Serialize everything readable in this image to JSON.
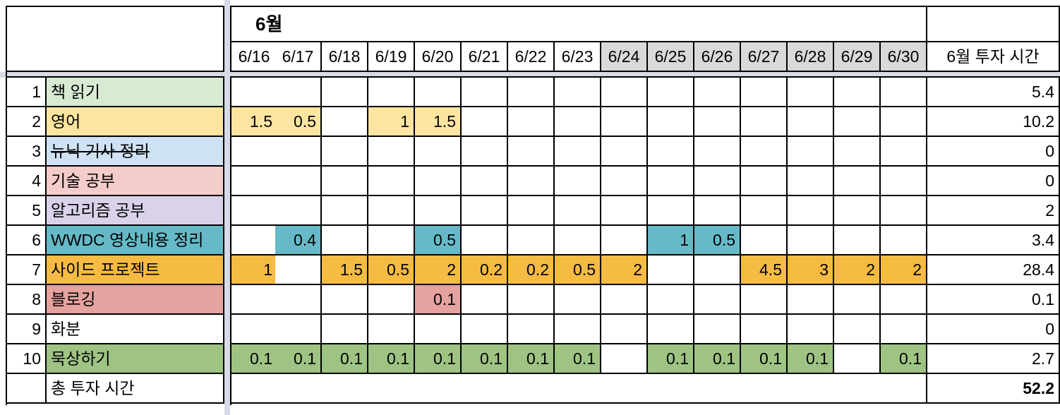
{
  "month_label": "6월",
  "dates": [
    "6/16",
    "6/17",
    "6/18",
    "6/19",
    "6/20",
    "6/21",
    "6/22",
    "6/23",
    "6/24",
    "6/25",
    "6/26",
    "6/27",
    "6/28",
    "6/29",
    "6/30"
  ],
  "weekend_dates": [
    "6/24",
    "6/25",
    "6/26",
    "6/27",
    "6/28",
    "6/29",
    "6/30"
  ],
  "total_header": "6월 투자 시간",
  "rows": [
    {
      "no": "1",
      "name": "책 읽기",
      "color": "#d9ead3",
      "strike": false,
      "values": [
        "",
        "",
        "",
        "",
        "",
        "",
        "",
        "",
        "",
        "",
        "",
        "",
        "",
        "",
        ""
      ],
      "total": "5.4"
    },
    {
      "no": "2",
      "name": "영어",
      "color": "#fce5a0",
      "strike": false,
      "values": [
        "1.5",
        "0.5",
        "",
        "1",
        "1.5",
        "",
        "",
        "",
        "",
        "",
        "",
        "",
        "",
        "",
        ""
      ],
      "total": "10.2"
    },
    {
      "no": "3",
      "name": "뉴닉 기사 정리",
      "color": "#cfe2f3",
      "strike": true,
      "values": [
        "",
        "",
        "",
        "",
        "",
        "",
        "",
        "",
        "",
        "",
        "",
        "",
        "",
        "",
        ""
      ],
      "total": "0"
    },
    {
      "no": "4",
      "name": "기술 공부",
      "color": "#f4cccc",
      "strike": false,
      "values": [
        "",
        "",
        "",
        "",
        "",
        "",
        "",
        "",
        "",
        "",
        "",
        "",
        "",
        "",
        ""
      ],
      "total": "0"
    },
    {
      "no": "5",
      "name": "알고리즘 공부",
      "color": "#d9d2e9",
      "strike": false,
      "values": [
        "",
        "",
        "",
        "",
        "",
        "",
        "",
        "",
        "",
        "",
        "",
        "",
        "",
        "",
        ""
      ],
      "total": "2"
    },
    {
      "no": "6",
      "name": "WWDC 영상내용 정리",
      "color": "#66bac8",
      "strike": false,
      "values": [
        "",
        "0.4",
        "",
        "",
        "0.5",
        "",
        "",
        "",
        "",
        "1",
        "0.5",
        "",
        "",
        "",
        ""
      ],
      "total": "3.4"
    },
    {
      "no": "7",
      "name": "사이드 프로젝트",
      "color": "#f5bb42",
      "strike": false,
      "values": [
        "1",
        "",
        "1.5",
        "0.5",
        "2",
        "0.2",
        "0.2",
        "0.5",
        "2",
        "",
        "",
        "4.5",
        "3",
        "2",
        "2"
      ],
      "total": "28.4"
    },
    {
      "no": "8",
      "name": "블로깅",
      "color": "#e6a29e",
      "strike": false,
      "values": [
        "",
        "",
        "",
        "",
        "0.1",
        "",
        "",
        "",
        "",
        "",
        "",
        "",
        "",
        "",
        ""
      ],
      "total": "0.1"
    },
    {
      "no": "9",
      "name": "화분",
      "color": "#ffffff",
      "strike": false,
      "values": [
        "",
        "",
        "",
        "",
        "",
        "",
        "",
        "",
        "",
        "",
        "",
        "",
        "",
        "",
        ""
      ],
      "total": "0"
    },
    {
      "no": "10",
      "name": "묵상하기",
      "color": "#9ec383",
      "strike": false,
      "values": [
        "0.1",
        "0.1",
        "0.1",
        "0.1",
        "0.1",
        "0.1",
        "0.1",
        "0.1",
        "",
        "0.1",
        "0.1",
        "0.1",
        "0.1",
        "",
        "0.1"
      ],
      "total": "2.7"
    }
  ],
  "footer_label": "총 투자 시간",
  "grand_total": "52.2",
  "colors": {
    "weekend_header": "#d9d9d9",
    "grid": "#000000",
    "freeze_bar": "#d7dbe6"
  }
}
